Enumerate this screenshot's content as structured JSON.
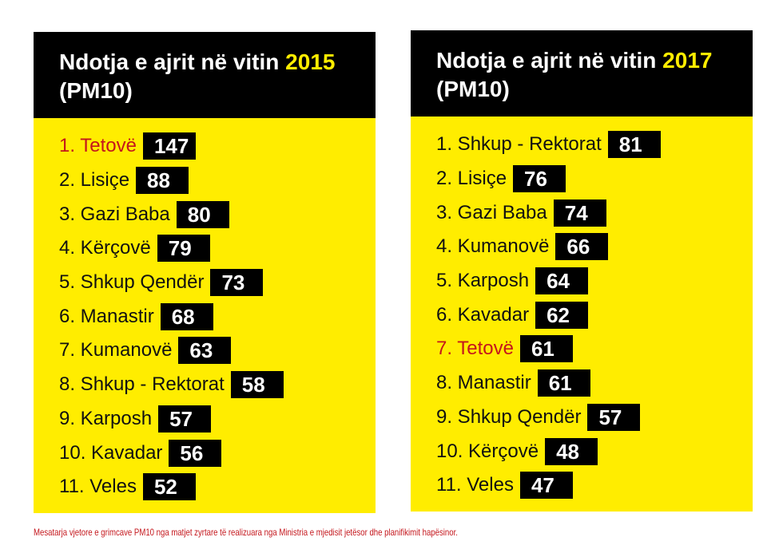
{
  "panels": [
    {
      "title_prefix": "Ndotja e ajrit në vitin",
      "year": "2015",
      "title_suffix": "(PM10)",
      "rows": [
        {
          "label": "1. Tetovë",
          "value": "147",
          "highlight": true
        },
        {
          "label": "2. Lisiçe",
          "value": "88"
        },
        {
          "label": "3. Gazi Baba",
          "value": "80"
        },
        {
          "label": "4. Kërçovë",
          "value": "79"
        },
        {
          "label": "5. Shkup Qendër",
          "value": "73"
        },
        {
          "label": "6. Manastir",
          "value": "68"
        },
        {
          "label": "7. Kumanovë",
          "value": "63"
        },
        {
          "label": "8. Shkup - Rektorat",
          "value": "58"
        },
        {
          "label": "9. Karposh",
          "value": "57"
        },
        {
          "label": "10. Kavadar",
          "value": "56"
        },
        {
          "label": "11. Veles",
          "value": "52"
        }
      ]
    },
    {
      "title_prefix": "Ndotja e ajrit në vitin",
      "year": "2017",
      "title_suffix": "(PM10)",
      "rows": [
        {
          "label": "1. Shkup - Rektorat",
          "value": "81"
        },
        {
          "label": "2. Lisiçe",
          "value": "76"
        },
        {
          "label": "3. Gazi Baba",
          "value": "74"
        },
        {
          "label": "4.  Kumanovë",
          "value": "66"
        },
        {
          "label": "5.  Karposh",
          "value": "64"
        },
        {
          "label": "6. Kavadar",
          "value": "62"
        },
        {
          "label": "7.  Tetovë",
          "value": "61",
          "highlight": true
        },
        {
          "label": "8.  Manastir",
          "value": "61"
        },
        {
          "label": "9. Shkup Qendër",
          "value": "57"
        },
        {
          "label": "10. Kërçovë",
          "value": "48"
        },
        {
          "label": "11. Veles",
          "value": "47"
        }
      ]
    }
  ],
  "footnote": "Mesatarja vjetore e grimcave PM10 nga matjet zyrtare të realizuara nga Ministria e mjedisit jetësor dhe planifikimit hapësinor.",
  "colors": {
    "panel": "#ffed00",
    "header": "#000000",
    "highlight": "#c4161c"
  },
  "chart_data": [
    {
      "type": "table",
      "title": "Ndotja e ajrit në vitin 2015 (PM10)",
      "categories": [
        "Tetovë",
        "Lisiçe",
        "Gazi Baba",
        "Kërçovë",
        "Shkup Qendër",
        "Manastir",
        "Kumanovë",
        "Shkup - Rektorat",
        "Karposh",
        "Kavadar",
        "Veles"
      ],
      "values": [
        147,
        88,
        80,
        79,
        73,
        68,
        63,
        58,
        57,
        56,
        52
      ]
    },
    {
      "type": "table",
      "title": "Ndotja e ajrit në vitin 2017 (PM10)",
      "categories": [
        "Shkup - Rektorat",
        "Lisiçe",
        "Gazi Baba",
        "Kumanovë",
        "Karposh",
        "Kavadar",
        "Tetovë",
        "Manastir",
        "Shkup Qendër",
        "Kërçovë",
        "Veles"
      ],
      "values": [
        81,
        76,
        74,
        66,
        64,
        62,
        61,
        61,
        57,
        48,
        47
      ]
    }
  ]
}
